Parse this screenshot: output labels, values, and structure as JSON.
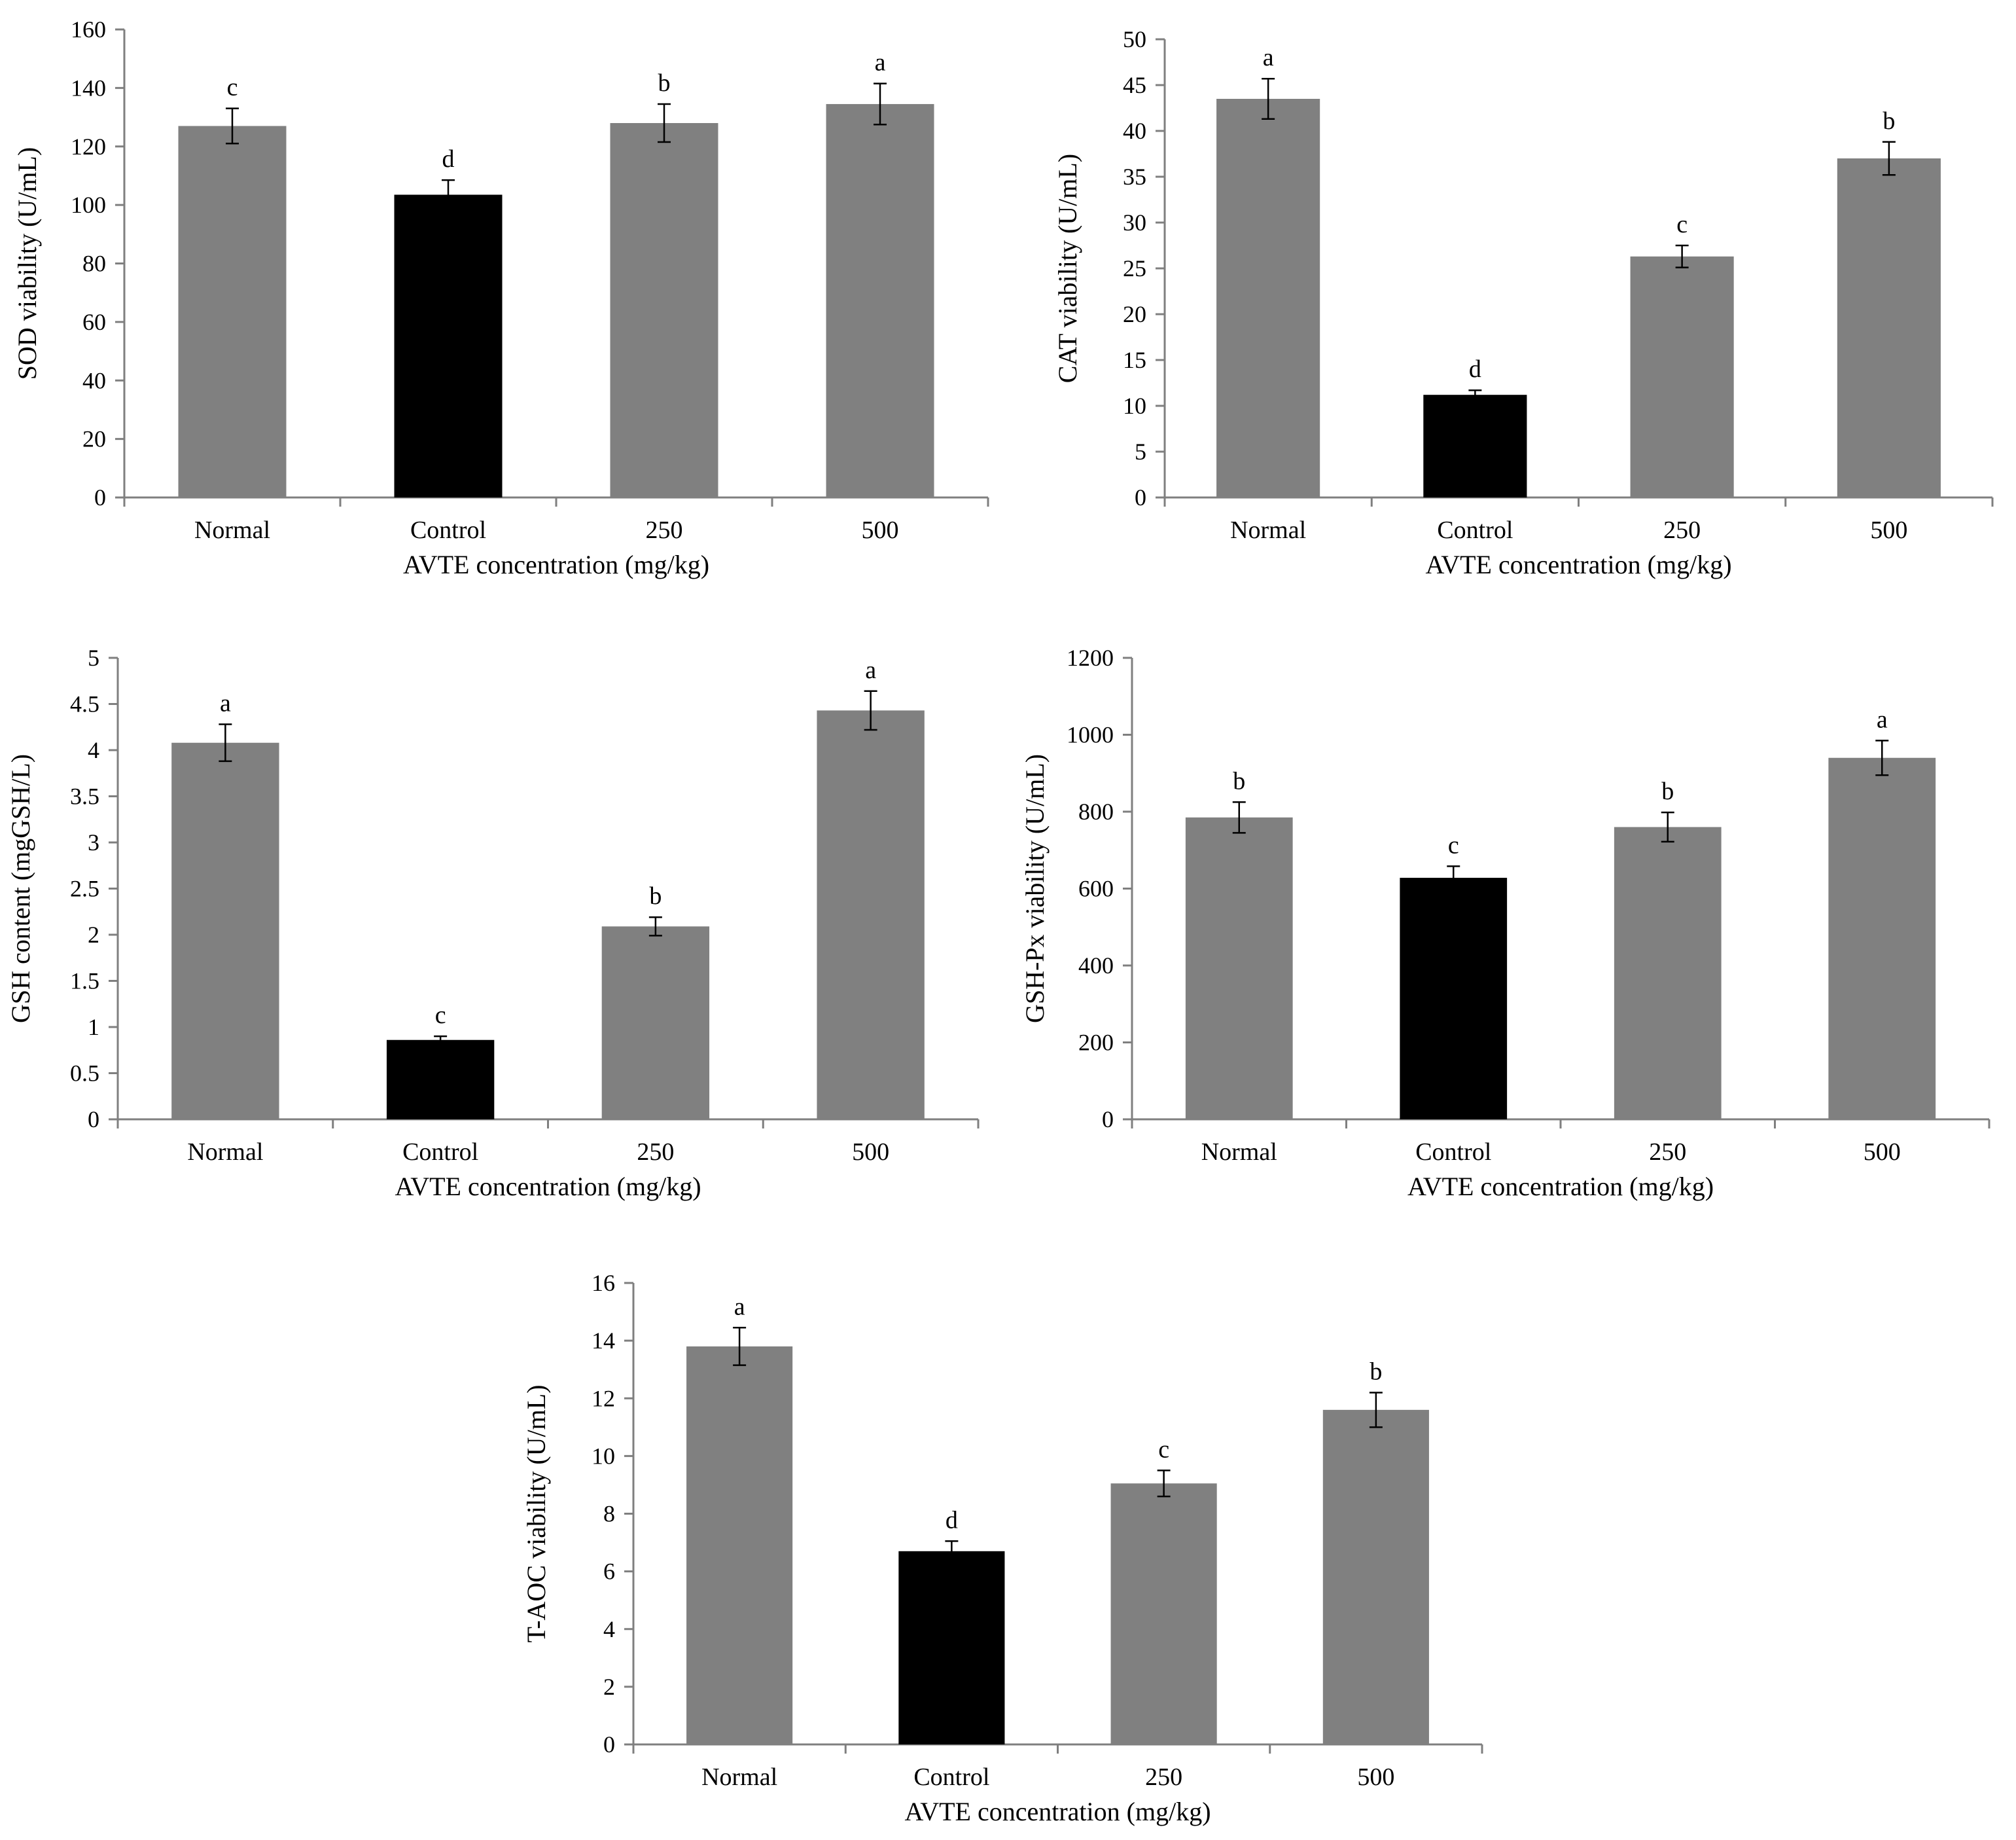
{
  "colors": {
    "treatment_bar": "#808080",
    "control_bar": "#000000",
    "axis": "#7f7f7f",
    "text": "#000000"
  },
  "chart_data": [
    {
      "id": "sod",
      "type": "bar",
      "ylabel": "SOD viability (U/mL)",
      "xlabel": "AVTE concentration (mg/kg)",
      "categories": [
        "Normal",
        "Control",
        "250",
        "500"
      ],
      "values": [
        127,
        103.5,
        128,
        134.5
      ],
      "errors": [
        6,
        5,
        6.5,
        7
      ],
      "significance": [
        "c",
        "d",
        "b",
        "a"
      ],
      "highlight": [
        false,
        true,
        false,
        false
      ],
      "ylim": [
        0,
        160
      ],
      "yticks": [
        0,
        20,
        40,
        60,
        80,
        100,
        120,
        140,
        160
      ],
      "ytick_labels": [
        "0",
        "20",
        "40",
        "60",
        "80",
        "100",
        "120",
        "140",
        "160"
      ]
    },
    {
      "id": "cat",
      "type": "bar",
      "ylabel": "CAT viability (U/mL)",
      "xlabel": "AVTE concentration (mg/kg)",
      "categories": [
        "Normal",
        "Control",
        "250",
        "500"
      ],
      "values": [
        43.5,
        11.2,
        26.3,
        37
      ],
      "errors": [
        2.2,
        0.5,
        1.2,
        1.8
      ],
      "significance": [
        "a",
        "d",
        "c",
        "b"
      ],
      "highlight": [
        false,
        true,
        false,
        false
      ],
      "ylim": [
        0,
        50
      ],
      "yticks": [
        0,
        5,
        10,
        15,
        20,
        25,
        30,
        35,
        40,
        45,
        50
      ],
      "ytick_labels": [
        "0",
        "5",
        "10",
        "15",
        "20",
        "25",
        "30",
        "35",
        "40",
        "45",
        "50"
      ]
    },
    {
      "id": "gsh",
      "type": "bar",
      "ylabel": "GSH content (mgGSH/L)",
      "xlabel": "AVTE concentration (mg/kg)",
      "categories": [
        "Normal",
        "Control",
        "250",
        "500"
      ],
      "values": [
        4.08,
        0.86,
        2.09,
        4.43
      ],
      "errors": [
        0.2,
        0.04,
        0.1,
        0.21
      ],
      "significance": [
        "a",
        "c",
        "b",
        "a"
      ],
      "highlight": [
        false,
        true,
        false,
        false
      ],
      "ylim": [
        0,
        5
      ],
      "yticks": [
        0,
        0.5,
        1,
        1.5,
        2,
        2.5,
        3,
        3.5,
        4,
        4.5,
        5
      ],
      "ytick_labels": [
        "0",
        "0.5",
        "1",
        "1.5",
        "2",
        "2.5",
        "3",
        "3.5",
        "4",
        "4.5",
        "5"
      ]
    },
    {
      "id": "gshpx",
      "type": "bar",
      "ylabel": "GSH-Px viability (U/mL)",
      "xlabel": "AVTE concentration (mg/kg)",
      "categories": [
        "Normal",
        "Control",
        "250",
        "500"
      ],
      "values": [
        785,
        628,
        760,
        940
      ],
      "errors": [
        40,
        30,
        38,
        45
      ],
      "significance": [
        "b",
        "c",
        "b",
        "a"
      ],
      "highlight": [
        false,
        true,
        false,
        false
      ],
      "ylim": [
        0,
        1200
      ],
      "yticks": [
        0,
        200,
        400,
        600,
        800,
        1000,
        1200
      ],
      "ytick_labels": [
        "0",
        "200",
        "400",
        "600",
        "800",
        "1000",
        "1200"
      ]
    },
    {
      "id": "taoc",
      "type": "bar",
      "ylabel": "T-AOC viability (U/mL)",
      "xlabel": "AVTE concentration (mg/kg)",
      "categories": [
        "Normal",
        "Control",
        "250",
        "500"
      ],
      "values": [
        13.8,
        6.7,
        9.05,
        11.6
      ],
      "errors": [
        0.65,
        0.35,
        0.45,
        0.6
      ],
      "significance": [
        "a",
        "d",
        "c",
        "b"
      ],
      "highlight": [
        false,
        true,
        false,
        false
      ],
      "ylim": [
        0,
        16
      ],
      "yticks": [
        0,
        2,
        4,
        6,
        8,
        10,
        12,
        14,
        16
      ],
      "ytick_labels": [
        "0",
        "2",
        "4",
        "6",
        "8",
        "10",
        "12",
        "14",
        "16"
      ]
    }
  ]
}
